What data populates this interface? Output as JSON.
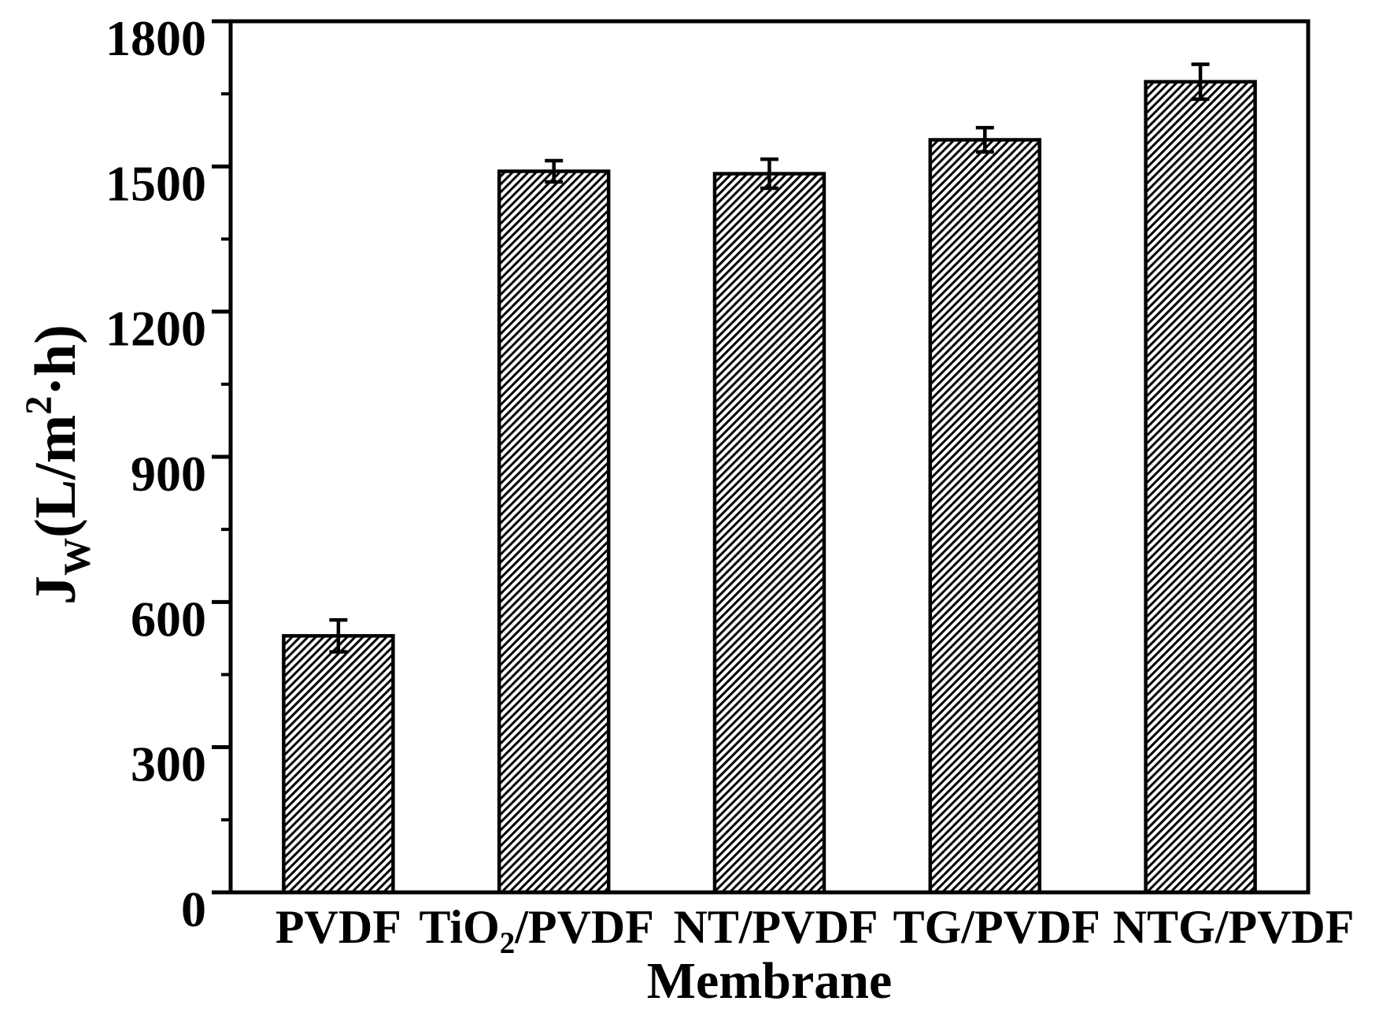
{
  "figure": {
    "background": "#ffffff",
    "foreground": "#000000"
  },
  "chart_data": {
    "type": "bar",
    "title": "",
    "xlabel": "Membrane",
    "ylabel": "Jw(L/m²·h)",
    "ylabel_segments": [
      {
        "t": "J"
      },
      {
        "t": "W",
        "style": "sub"
      },
      {
        "t": "(L/m"
      },
      {
        "t": "2",
        "style": "sup"
      },
      {
        "t": "·h)"
      }
    ],
    "categories": [
      "PVDF",
      "TiO₂/PVDF",
      "NT/PVDF",
      "TG/PVDF",
      "NTG/PVDF"
    ],
    "values": [
      530,
      1490,
      1485,
      1555,
      1675
    ],
    "errors": [
      33,
      22,
      30,
      25,
      36
    ],
    "ylim": [
      0,
      1800
    ],
    "ytick_major_step": 300,
    "ytick_major": [
      0,
      300,
      600,
      900,
      1200,
      1500,
      1800
    ],
    "ytick_minor_step": 150,
    "grid": false,
    "legend": null,
    "bar_style": {
      "fill": "#ffffff",
      "hatch": "diagonal-forward",
      "edge_color": "#000000"
    }
  }
}
